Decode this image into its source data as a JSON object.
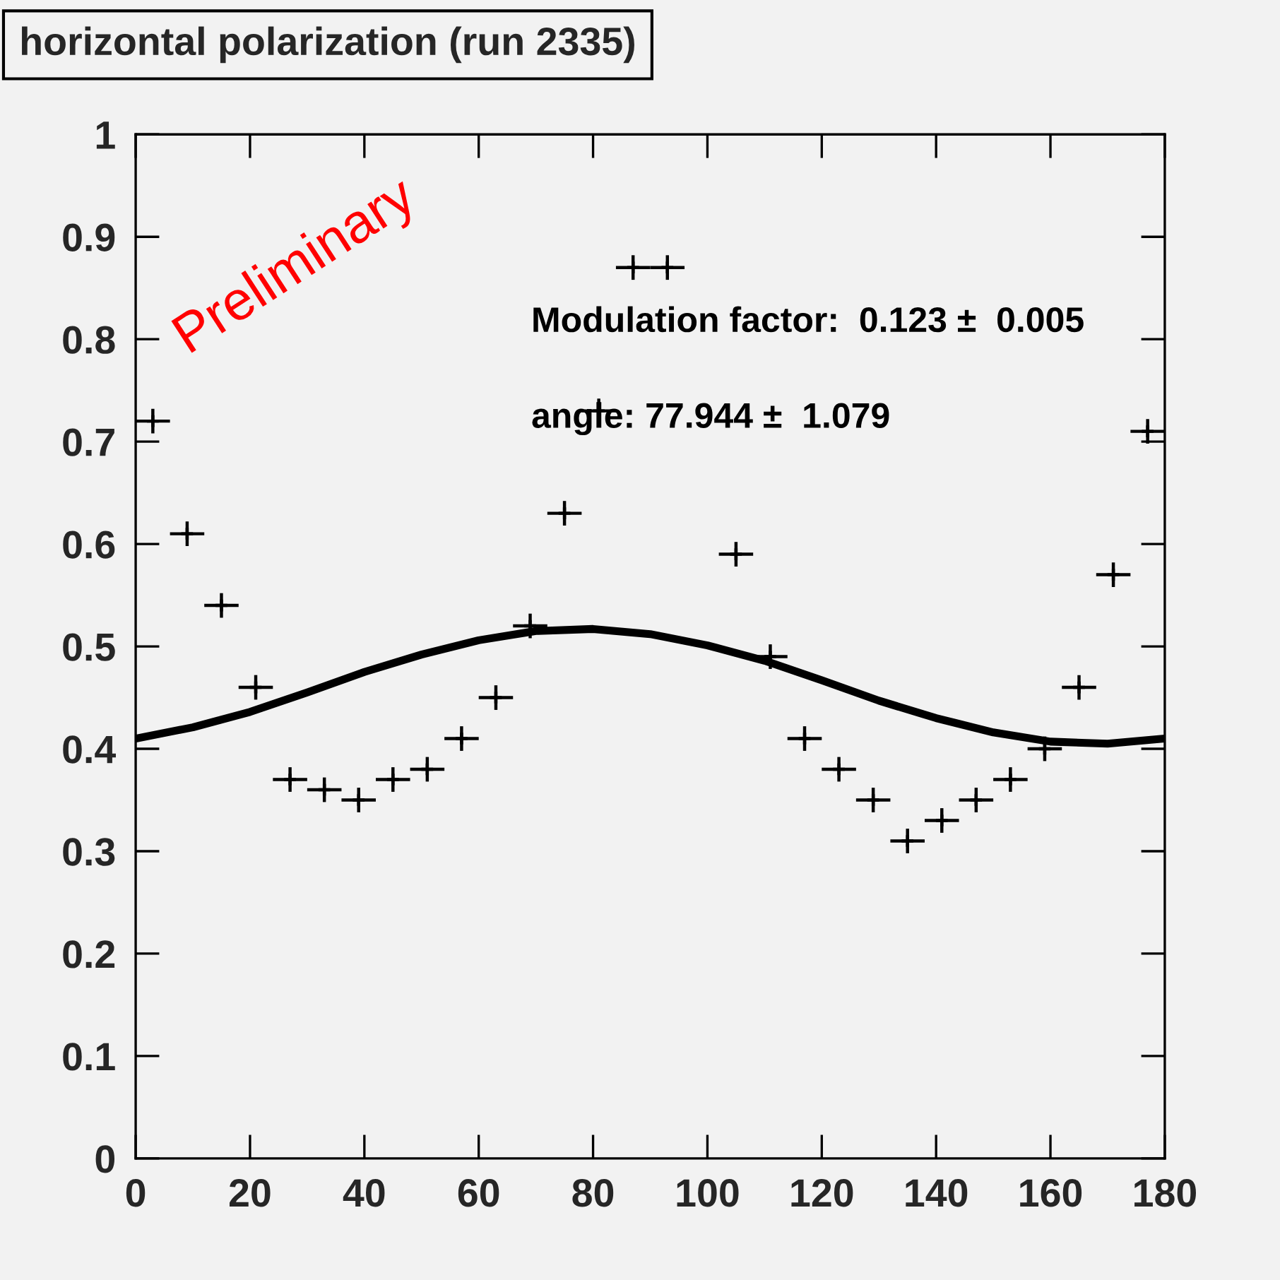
{
  "chart_data": {
    "type": "scatter",
    "title": "horizontal polarization (run 2335)",
    "x": [
      3,
      9,
      15,
      21,
      27,
      33,
      39,
      45,
      51,
      57,
      63,
      69,
      75,
      81,
      87,
      93,
      99,
      105,
      111,
      117,
      123,
      129,
      135,
      141,
      147,
      153,
      159,
      165,
      171,
      177
    ],
    "series": [
      {
        "type": "scatter",
        "color": "#000000",
        "marker": "cross",
        "values": [
          0.72,
          0.61,
          0.54,
          0.46,
          0.37,
          0.36,
          0.35,
          0.37,
          0.38,
          0.41,
          0.45,
          0.52,
          0.63,
          0.73,
          0.87,
          0.87,
          null,
          0.59,
          0.49,
          0.41,
          0.38,
          0.35,
          0.31,
          0.33,
          0.35,
          0.37,
          0.4,
          0.46,
          0.57,
          0.71
        ],
        "errors": [
          0.012,
          0.012,
          0.012,
          0.012,
          0.012,
          0.012,
          0.012,
          0.012,
          0.012,
          0.012,
          0.012,
          0.012,
          0.012,
          0.012,
          0.012,
          0.012,
          null,
          0.012,
          0.012,
          0.012,
          0.012,
          0.012,
          0.012,
          0.012,
          0.012,
          0.012,
          0.012,
          0.012,
          0.012,
          0.012
        ],
        "xerrors": [
          3,
          3,
          3,
          3,
          3,
          3,
          3,
          3,
          3,
          3,
          3,
          3,
          3,
          3,
          3,
          3,
          null,
          3,
          3,
          3,
          3,
          3,
          3,
          3,
          3,
          3,
          3,
          3,
          3,
          3
        ]
      },
      {
        "type": "line",
        "color": "#000000",
        "x": [
          0,
          10,
          20,
          30,
          40,
          50,
          60,
          70,
          80,
          90,
          100,
          110,
          120,
          130,
          140,
          150,
          160,
          170,
          180
        ],
        "values": [
          0.41,
          0.421,
          0.436,
          0.455,
          0.475,
          0.492,
          0.506,
          0.515,
          0.517,
          0.512,
          0.501,
          0.486,
          0.467,
          0.447,
          0.43,
          0.416,
          0.407,
          0.405,
          0.41
        ]
      }
    ],
    "xlim": [
      0,
      180
    ],
    "xticks": [
      0,
      20,
      40,
      60,
      80,
      100,
      120,
      140,
      160,
      180
    ],
    "ylim": [
      0,
      1
    ],
    "yticks": [
      {
        "value": 0,
        "label": "0"
      },
      0.1,
      0.2,
      0.3,
      0.4,
      0.5,
      0.6,
      0.7,
      0.8,
      0.9,
      {
        "value": 1,
        "label": "1"
      }
    ],
    "grid": false,
    "legend": false,
    "annotations": [
      "Modulation factor:  0.123 ±  0.005",
      "angle: 77.944 ±  1.079",
      "Preliminary"
    ]
  }
}
